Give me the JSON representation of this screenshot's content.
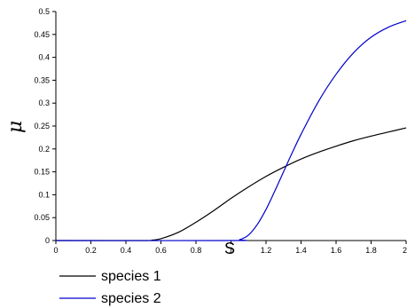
{
  "chart_data": {
    "type": "line",
    "xlabel": "S",
    "ylabel": "μ",
    "xlim": [
      0,
      2
    ],
    "ylim": [
      0,
      0.5
    ],
    "xticks": [
      "0",
      "0.2",
      "0.4",
      "0.6",
      "0.8",
      "1",
      "1.2",
      "1.4",
      "1.6",
      "1.8",
      "2"
    ],
    "yticks": [
      "0",
      "0.05",
      "0.1",
      "0.15",
      "0.2",
      "0.25",
      "0.3",
      "0.35",
      "0.4",
      "0.45",
      "0.5"
    ],
    "grid": false,
    "legend_position": "bottom-left, below plot",
    "series": [
      {
        "name": "species 1",
        "color": "#000000",
        "x": [
          0,
          0.5,
          0.55,
          0.6,
          0.7,
          0.8,
          0.9,
          1.0,
          1.1,
          1.2,
          1.3,
          1.4,
          1.5,
          1.6,
          1.7,
          1.8,
          1.9,
          2.0
        ],
        "y": [
          0,
          0,
          0.001,
          0.004,
          0.018,
          0.04,
          0.065,
          0.092,
          0.117,
          0.14,
          0.16,
          0.178,
          0.193,
          0.206,
          0.218,
          0.228,
          0.237,
          0.246
        ]
      },
      {
        "name": "species 2",
        "color": "#0000cc",
        "x": [
          0,
          1.0,
          1.05,
          1.1,
          1.15,
          1.2,
          1.25,
          1.3,
          1.35,
          1.4,
          1.5,
          1.6,
          1.7,
          1.8,
          1.9,
          2.0
        ],
        "y": [
          0,
          0,
          0.002,
          0.012,
          0.035,
          0.068,
          0.108,
          0.15,
          0.192,
          0.232,
          0.304,
          0.363,
          0.41,
          0.444,
          0.466,
          0.48
        ]
      }
    ]
  }
}
